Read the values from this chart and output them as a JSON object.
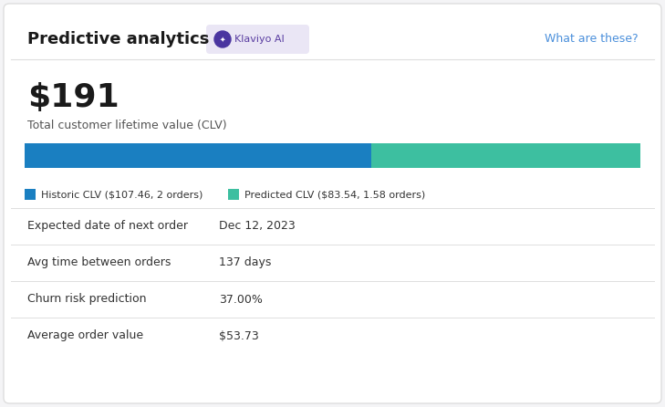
{
  "title": "Predictive analytics",
  "klaviyo_badge": "Klaviyo AI",
  "what_are_these": "What are these?",
  "total_clv_label": "Total customer lifetime value (CLV)",
  "total_clv_value": "$191",
  "historic_clv": 107.46,
  "predicted_clv": 83.54,
  "historic_label": "Historic CLV ($107.46, 2 orders)",
  "predicted_label": "Predicted CLV ($83.54, 1.58 orders)",
  "historic_color": "#1a7fc1",
  "predicted_color": "#3dbfa0",
  "badge_bg": "#eae6f5",
  "badge_text_color": "#5a3ea1",
  "badge_circle_color": "#4a35a0",
  "what_color": "#4a8fdb",
  "metrics": [
    {
      "label": "Expected date of next order",
      "value": "Dec 12, 2023"
    },
    {
      "label": "Avg time between orders",
      "value": "137 days"
    },
    {
      "label": "Churn risk prediction",
      "value": "37.00%"
    },
    {
      "label": "Average order value",
      "value": "$53.73"
    }
  ],
  "bg_color": "#f4f4f6",
  "card_bg": "#ffffff",
  "border_color": "#dedede",
  "label_color": "#333333",
  "value_color": "#333333",
  "title_color": "#1a1a1a",
  "clv_value_color": "#1a1a1a",
  "subtitle_color": "#555555"
}
